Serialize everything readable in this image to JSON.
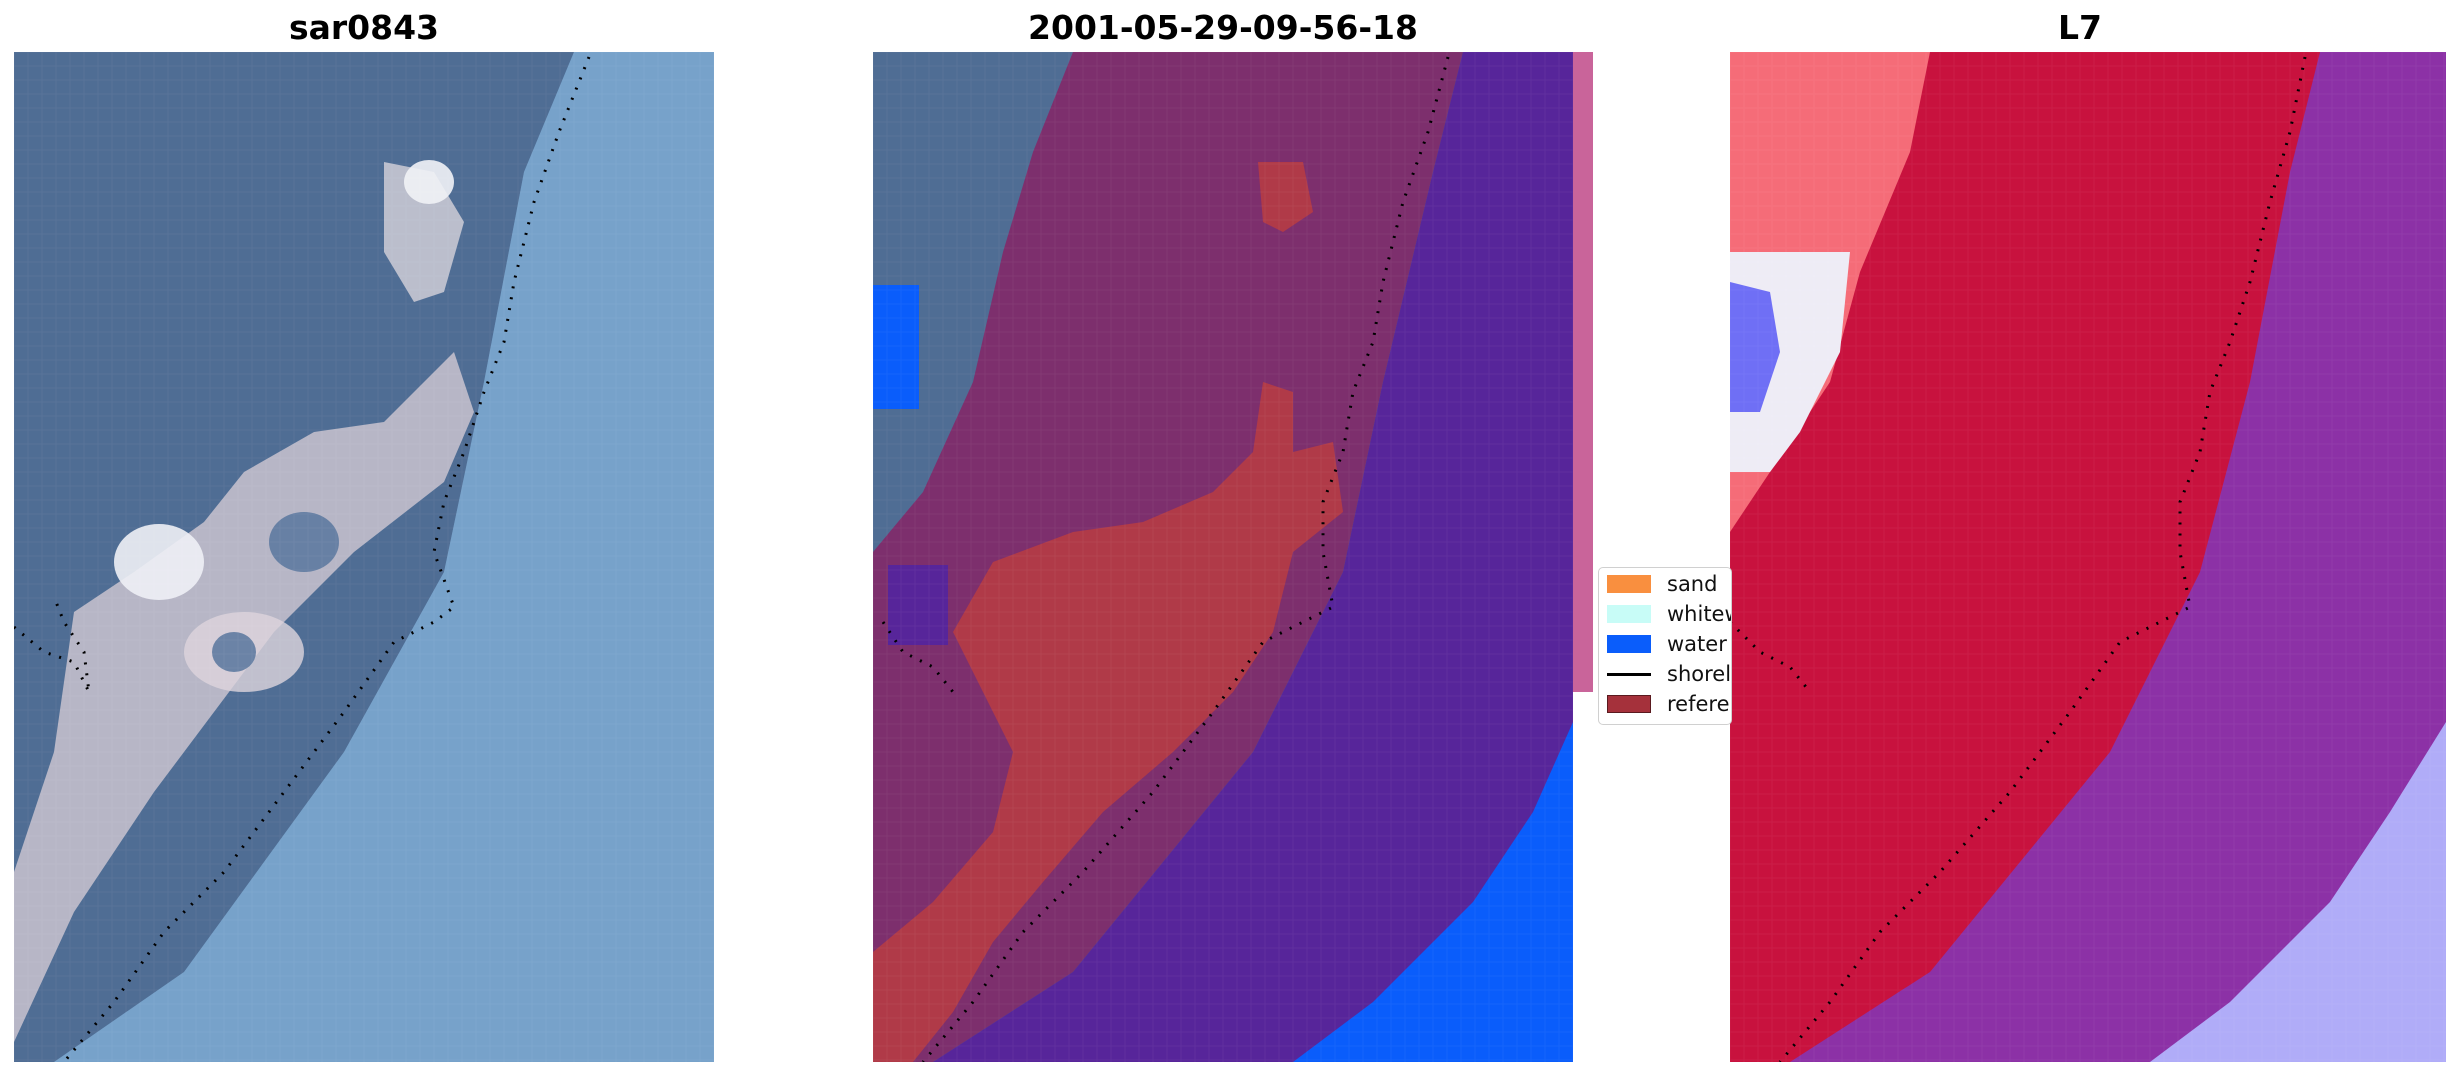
{
  "panels": [
    {
      "title": "sar0843"
    },
    {
      "title": "2001-05-29-09-56-18"
    },
    {
      "title": "L7"
    }
  ],
  "legend": {
    "items": [
      {
        "label": "sand",
        "color": "#f98f3f",
        "kind": "patch"
      },
      {
        "label": "whitewater",
        "color": "#c8fcf7",
        "kind": "patch"
      },
      {
        "label": "water",
        "color": "#0a5dfb",
        "kind": "patch"
      },
      {
        "label": "shoreline",
        "color": "#000000",
        "kind": "line"
      },
      {
        "label": "reference",
        "color": "#a5313b",
        "kind": "patch"
      }
    ]
  },
  "colors": {
    "ocean_rgb": "#6f9ac4",
    "land_rgb": "#4f6d94",
    "sand_rgb": "#d9d2d6",
    "class_water": "#0a5dfb",
    "class_sand_overlay": "#b03a48",
    "overlay_sea": "#57259a",
    "overlay_land": "#7d2f6d",
    "ndwi_land": "#c8123e",
    "ndwi_sea": "#8c31a6",
    "ndwi_light": "#b0acf8"
  }
}
